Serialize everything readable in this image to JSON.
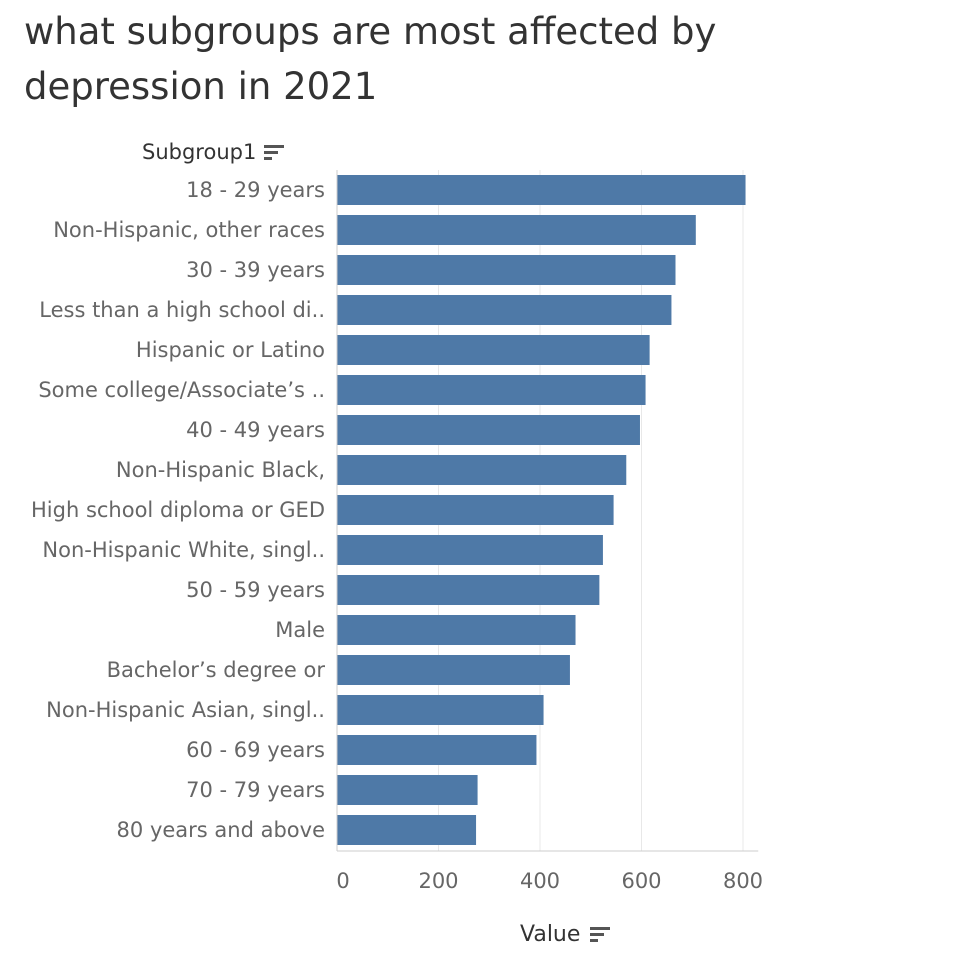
{
  "title": "what subgroups are most affected by depression in 2021",
  "y_header": "Subgroup1",
  "x_header": "Value",
  "colors": {
    "bar": "#4e79a7",
    "grid": "#e8e8e8",
    "axis": "#cccccc"
  },
  "icons": {
    "sort": "sort-descending-icon"
  },
  "chart_data": {
    "type": "bar",
    "orientation": "horizontal",
    "xlabel": "Value",
    "ylabel": "Subgroup1",
    "xlim": [
      0,
      830
    ],
    "xticks": [
      "0",
      "200",
      "400",
      "600",
      "800"
    ],
    "grid": true,
    "categories": [
      "18 - 29 years",
      "Non-Hispanic, other races",
      "30 - 39 years",
      "Less than a high school di..",
      "Hispanic or Latino",
      "Some college/Associate’s ..",
      "40 - 49 years",
      "Non-Hispanic Black,",
      "High school diploma or GED",
      "Non-Hispanic White, singl..",
      "50 - 59 years",
      "Male",
      "Bachelor’s degree or",
      "Non-Hispanic Asian, singl..",
      "60 - 69 years",
      "70 - 79 years",
      "80 years and above"
    ],
    "values": [
      805,
      707,
      667,
      659,
      616,
      608,
      597,
      570,
      545,
      524,
      517,
      470,
      459,
      407,
      393,
      277,
      274
    ]
  }
}
